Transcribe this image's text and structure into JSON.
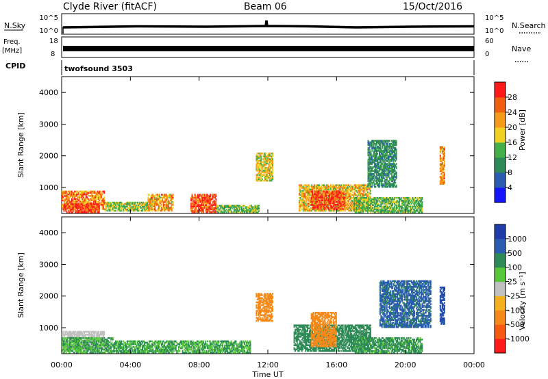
{
  "header": {
    "station": "Clyde River (fitACF)",
    "beam": "Beam 06",
    "date": "15/Oct/2016"
  },
  "top_panels": {
    "nsky_label": "N.Sky",
    "nsky_ticks": [
      "10^5",
      "10^0"
    ],
    "nsearch_label": "N.Search",
    "nsearch_ticks": [
      "10^5",
      "10^0"
    ],
    "freq_label": "Freq.",
    "freq_unit": "[MHz]",
    "freq_ticks": [
      "18",
      "8"
    ],
    "nave_label": "Nave",
    "nave_ticks": [
      "60",
      "0"
    ],
    "cpid_label": "CPID",
    "cpid_value": "twofsound 3503"
  },
  "colors": {
    "power_scale": [
      "#1414ff",
      "#2a5cb0",
      "#2e8b57",
      "#44b04a",
      "#f0d020",
      "#f59a1a",
      "#f06010",
      "#ff1a1a"
    ],
    "velocity_scale": [
      "#ff1a1a",
      "#f55a10",
      "#f58a1a",
      "#f5b020",
      "#c0c0c0",
      "#56c83a",
      "#2e8b57",
      "#2a5cb0",
      "#1e3caa"
    ]
  },
  "chart_data": [
    {
      "type": "heatmap",
      "title": "",
      "xlabel": "",
      "ylabel": "Slant Range [km]",
      "x_ticks": [
        "00:00",
        "04:00",
        "08:00",
        "12:00",
        "16:00",
        "20:00",
        "00:00"
      ],
      "y_ticks": [
        "1000",
        "2000",
        "3000",
        "4000"
      ],
      "ylim": [
        180,
        4500
      ],
      "colorbar": {
        "label": "Power [dB]",
        "ticks": [
          "4",
          "8",
          "12",
          "16",
          "20",
          "24",
          "28"
        ],
        "range": [
          0,
          32
        ]
      },
      "regions": [
        {
          "t": [
            0.0,
            2.5
          ],
          "r": [
            300,
            900
          ],
          "value": 24
        },
        {
          "t": [
            0.1,
            2.2
          ],
          "r": [
            200,
            500
          ],
          "value": 30
        },
        {
          "t": [
            2.5,
            5.0
          ],
          "r": [
            250,
            550
          ],
          "value": 16
        },
        {
          "t": [
            5.0,
            6.5
          ],
          "r": [
            250,
            800
          ],
          "value": 22
        },
        {
          "t": [
            7.5,
            9.0
          ],
          "r": [
            200,
            800
          ],
          "value": 28
        },
        {
          "t": [
            9.0,
            11.5
          ],
          "r": [
            200,
            450
          ],
          "value": 14
        },
        {
          "t": [
            11.3,
            12.3
          ],
          "r": [
            1200,
            2100
          ],
          "value": 18
        },
        {
          "t": [
            13.8,
            18.0
          ],
          "r": [
            250,
            1100
          ],
          "value": 20
        },
        {
          "t": [
            14.5,
            16.5
          ],
          "r": [
            300,
            900
          ],
          "value": 28
        },
        {
          "t": [
            17.0,
            21.0
          ],
          "r": [
            200,
            700
          ],
          "value": 14
        },
        {
          "t": [
            17.8,
            19.5
          ],
          "r": [
            1000,
            2500
          ],
          "value": 10
        },
        {
          "t": [
            22.0,
            22.3
          ],
          "r": [
            1100,
            2300
          ],
          "value": 22
        }
      ]
    },
    {
      "type": "heatmap",
      "title": "",
      "xlabel": "Time UT",
      "ylabel": "Slant Range [km]",
      "x_ticks": [
        "00:00",
        "04:00",
        "08:00",
        "12:00",
        "16:00",
        "20:00",
        "00:00"
      ],
      "y_ticks": [
        "1000",
        "2000",
        "3000",
        "4000"
      ],
      "ylim": [
        180,
        4500
      ],
      "colorbar": {
        "label": "Velocity [m s⁻¹]",
        "ticks": [
          "1000",
          "500",
          "100",
          "25",
          "-25",
          "-100",
          "-500",
          "-1000"
        ]
      },
      "regions": [
        {
          "t": [
            0.0,
            2.5
          ],
          "r": [
            300,
            900
          ],
          "value": 0
        },
        {
          "t": [
            0.0,
            3.0
          ],
          "r": [
            200,
            700
          ],
          "value": 100
        },
        {
          "t": [
            3.0,
            11.0
          ],
          "r": [
            200,
            600
          ],
          "value": 100
        },
        {
          "t": [
            11.3,
            12.3
          ],
          "r": [
            1200,
            2100
          ],
          "value": -300
        },
        {
          "t": [
            13.5,
            18.0
          ],
          "r": [
            250,
            1100
          ],
          "value": 150
        },
        {
          "t": [
            14.5,
            16.0
          ],
          "r": [
            400,
            1500
          ],
          "value": -200
        },
        {
          "t": [
            17.0,
            21.0
          ],
          "r": [
            200,
            700
          ],
          "value": 120
        },
        {
          "t": [
            18.5,
            21.5
          ],
          "r": [
            1000,
            2500
          ],
          "value": 600
        },
        {
          "t": [
            22.0,
            22.3
          ],
          "r": [
            1100,
            2300
          ],
          "value": 900
        }
      ]
    }
  ]
}
